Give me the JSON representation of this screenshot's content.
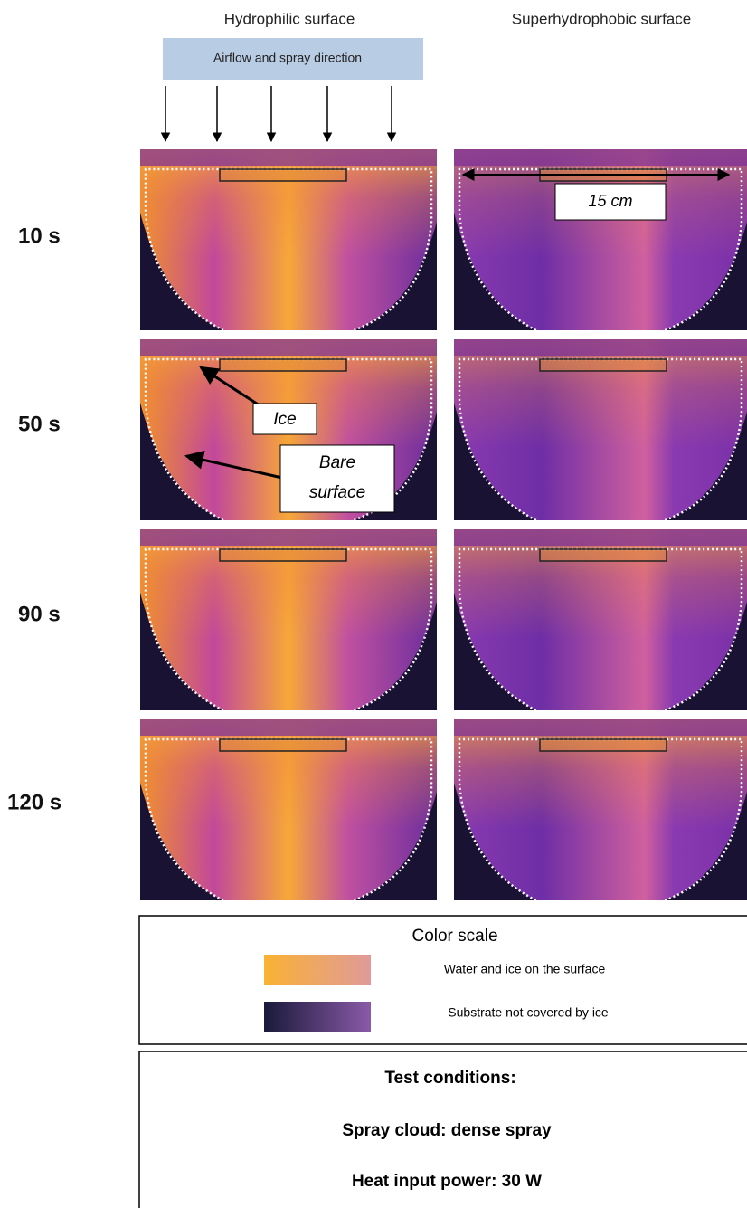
{
  "columns": [
    "Hydrophilic surface",
    "Superhydrophobic surface"
  ],
  "airflow_label": "Airflow and spray direction",
  "rows": [
    "10 s",
    "50 s",
    "90 s",
    "120 s"
  ],
  "annotations": {
    "scale": "15 cm",
    "ice": "Ice",
    "bare": [
      "Bare",
      "surface"
    ]
  },
  "color_scale": {
    "title": "Color scale",
    "entries": [
      "Water and ice on the surface",
      "Substrate not covered by ice"
    ]
  },
  "test_conditions": {
    "title": "Test conditions:",
    "lines": [
      "Spray cloud: dense spray",
      "Heat input power: 30 W"
    ]
  }
}
